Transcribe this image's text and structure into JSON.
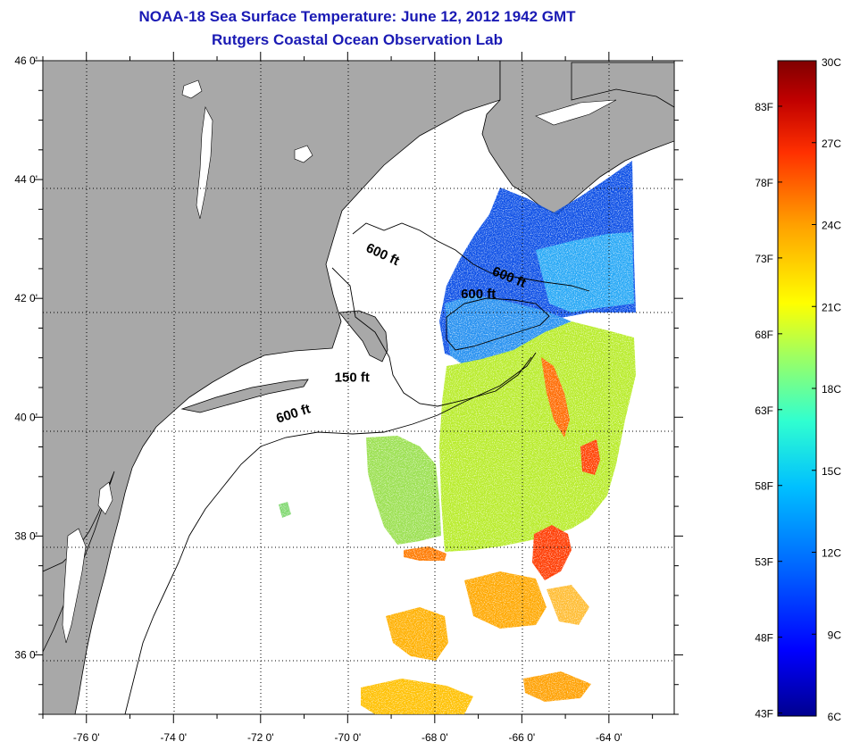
{
  "title": {
    "line1": "NOAA-18 Sea Surface Temperature:  June 12, 2012 1942 GMT",
    "line2": "Rutgers Coastal Ocean Observation Lab"
  },
  "map": {
    "lon_range": [
      -77.0,
      -62.5
    ],
    "lat_range": [
      35.0,
      46.0
    ],
    "lon_ticks": [
      {
        "value": -76,
        "label": "-76 0'"
      },
      {
        "value": -74,
        "label": "-74 0'"
      },
      {
        "value": -72,
        "label": "-72 0'"
      },
      {
        "value": -70,
        "label": "-70 0'"
      },
      {
        "value": -68,
        "label": "-68 0'"
      },
      {
        "value": -66,
        "label": "-66 0'"
      },
      {
        "value": -64,
        "label": "-64 0'"
      }
    ],
    "lat_ticks": [
      {
        "value": 36,
        "label": "36 0'"
      },
      {
        "value": 38,
        "label": "38 0'"
      },
      {
        "value": 40,
        "label": "40 0'"
      },
      {
        "value": 42,
        "label": "42 0'"
      },
      {
        "value": 44,
        "label": "44 0'"
      },
      {
        "value": 46,
        "label": "46 0'"
      }
    ],
    "grid": true,
    "land_color": "#a8a8a8",
    "ocean_color": "#ffffff",
    "contour_labels": [
      {
        "text": "600 ft",
        "lon": -69.6,
        "lat": 42.8
      },
      {
        "text": "600 ft",
        "lon": -66.7,
        "lat": 42.4
      },
      {
        "text": "600 ft",
        "lon": -67.4,
        "lat": 42.0
      },
      {
        "text": "150 ft",
        "lon": -70.3,
        "lat": 40.6
      },
      {
        "text": "600 ft",
        "lon": -71.6,
        "lat": 39.9
      }
    ]
  },
  "colorbar": {
    "celsius_range": [
      6,
      30
    ],
    "fahrenheit_range": [
      43,
      86
    ],
    "celsius_labels": [
      "30C",
      "27C",
      "24C",
      "21C",
      "18C",
      "15C",
      "12C",
      "9C",
      "6C"
    ],
    "celsius_values": [
      30,
      27,
      24,
      21,
      18,
      15,
      12,
      9,
      6
    ],
    "fahrenheit_labels": [
      "83F",
      "78F",
      "73F",
      "68F",
      "63F",
      "58F",
      "53F",
      "48F",
      "43F"
    ],
    "fahrenheit_values": [
      83,
      78,
      73,
      68,
      63,
      58,
      53,
      48,
      43
    ],
    "colors": [
      "#00008f",
      "#0000ff",
      "#0060ff",
      "#00c0ff",
      "#30ffd0",
      "#a0ff60",
      "#ffff00",
      "#ffa000",
      "#ff3000",
      "#c00000",
      "#800000"
    ]
  }
}
